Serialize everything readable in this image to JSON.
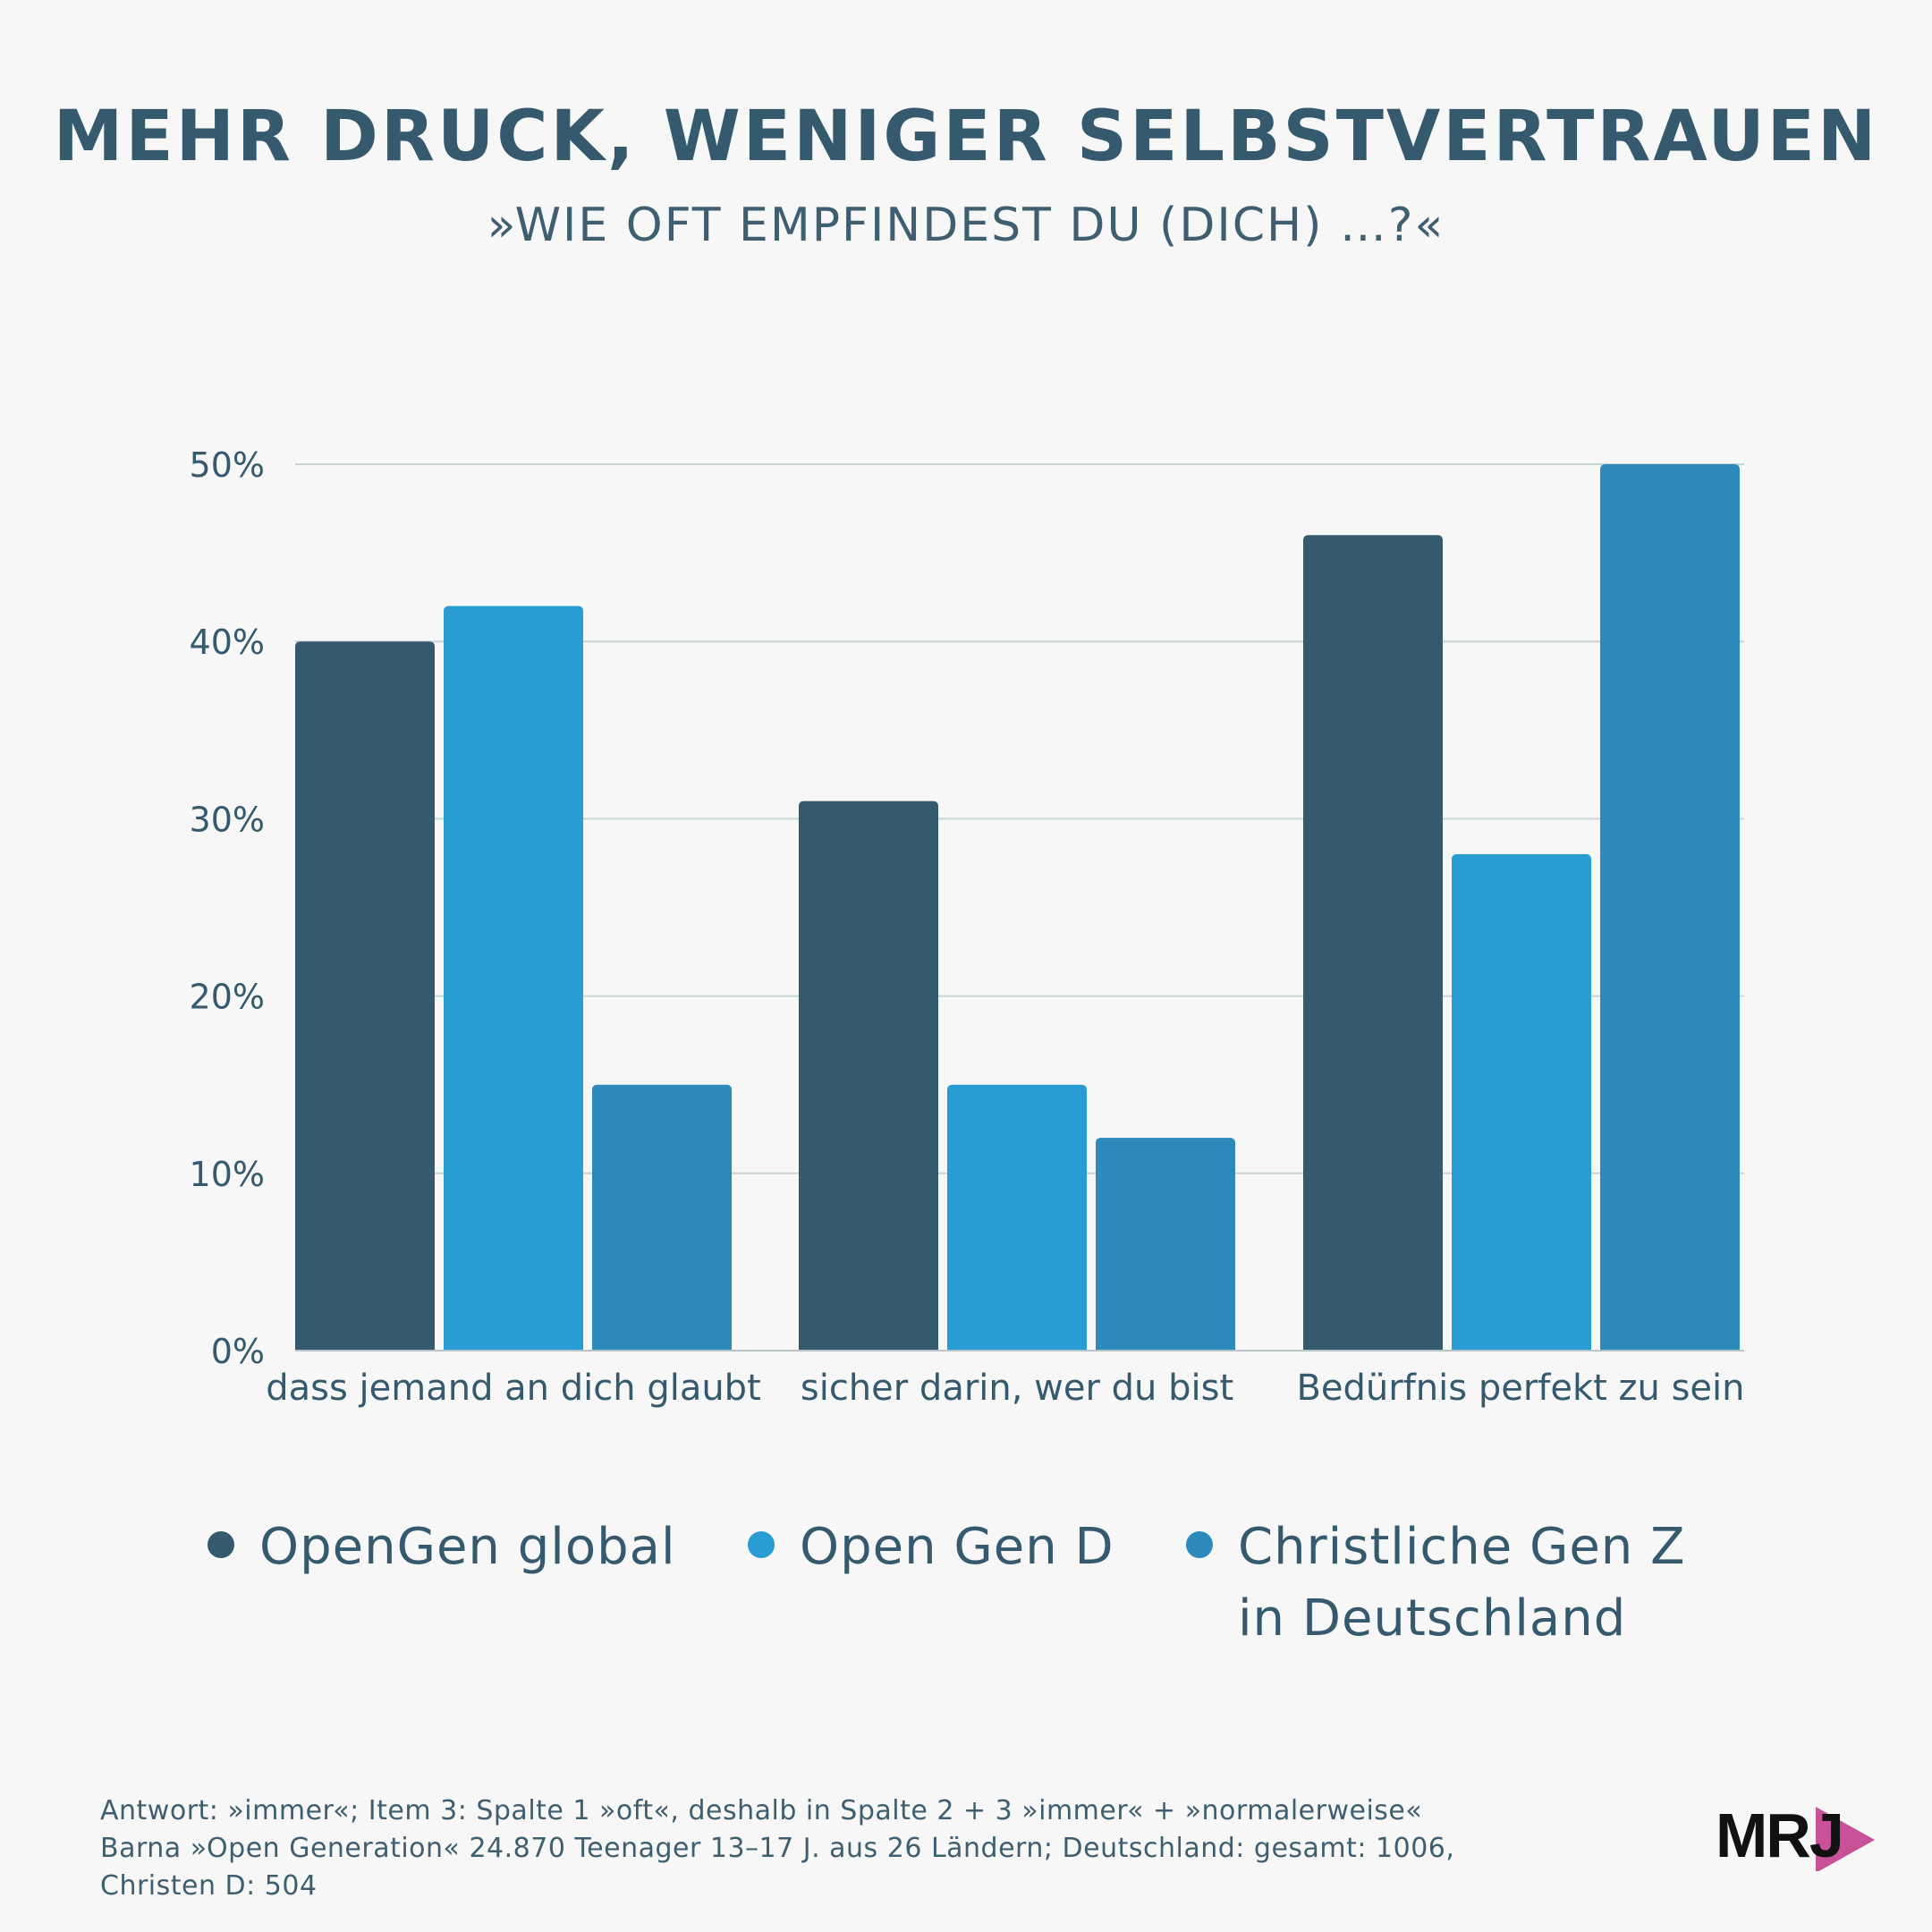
{
  "title": "MEHR DRUCK, WENIGER SELBSTVERTRAUEN",
  "subtitle": "»WIE OFT EMPFINDEST DU (DICH) …?«",
  "colors": {
    "background": "#f7f7f7",
    "text": "#365a6d",
    "grid": "#c9d4d6",
    "series": [
      "#365a6d",
      "#299cd3",
      "#2d8aba"
    ],
    "logo_accent": "#c03487"
  },
  "chart_data": {
    "type": "bar",
    "categories": [
      "dass jemand an dich glaubt",
      "sicher darin, wer du bist",
      "Bedürfnis perfekt zu sein"
    ],
    "series": [
      {
        "name": "OpenGen global",
        "values": [
          40,
          31,
          46
        ]
      },
      {
        "name": "Open Gen D",
        "values": [
          42,
          15,
          28
        ]
      },
      {
        "name": "Christliche Gen Z in Deutschland",
        "values": [
          15,
          12,
          50
        ]
      }
    ],
    "ylim": [
      0,
      50
    ],
    "yticks": [
      "0%",
      "10%",
      "20%",
      "30%",
      "40%",
      "50%"
    ],
    "tick_values": [
      0,
      10,
      20,
      30,
      40,
      50
    ],
    "grid": true,
    "legend_position": "bottom",
    "xlabel": "",
    "ylabel": ""
  },
  "legend": {
    "items": [
      {
        "lines": [
          "OpenGen global"
        ]
      },
      {
        "lines": [
          "Open Gen D"
        ]
      },
      {
        "lines": [
          "Christliche Gen Z",
          "in Deutschland"
        ]
      }
    ]
  },
  "note": {
    "line1": "Antwort: »immer«; Item 3: Spalte 1 »oft«, deshalb in Spalte 2 + 3 »immer« + »normalerweise«",
    "line2": "Barna »Open Generation« 24.870 Teenager 13–17 J. aus 26 Ländern; Deutschland: gesamt: 1006,",
    "line3": "Christen D: 504"
  },
  "logo": {
    "text": "MRJ"
  }
}
